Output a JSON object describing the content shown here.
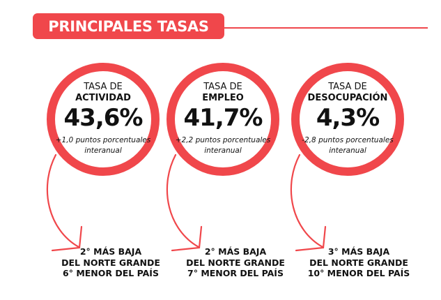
{
  "header": {
    "title": "PRINCIPALES TASAS"
  },
  "colors": {
    "accent": "#f0474b",
    "text": "#111111"
  },
  "rates": [
    {
      "label_line1": "TASA DE",
      "label_line2": "ACTIVIDAD",
      "value": "43,6%",
      "note": "+1,0 puntos porcentuales interanual",
      "ranking": [
        "2° MÁS BAJA",
        "DEL NORTE GRANDE",
        "6° MENOR DEL PAÍS"
      ]
    },
    {
      "label_line1": "TASA DE",
      "label_line2": "EMPLEO",
      "value": "41,7%",
      "note": "+2,2 puntos porcentuales interanual",
      "ranking": [
        "2° MÁS BAJA",
        "DEL NORTE GRANDE",
        "7° MENOR DEL PAÍS"
      ]
    },
    {
      "label_line1": "TASA DE",
      "label_line2": "DESOCUPACIÓN",
      "value": "4,3%",
      "note": "-2,8 puntos porcentuales interanual",
      "ranking": [
        "3° MÁS BAJA",
        "DEL NORTE GRANDE",
        "10° MENOR DEL PAÍS"
      ]
    }
  ]
}
